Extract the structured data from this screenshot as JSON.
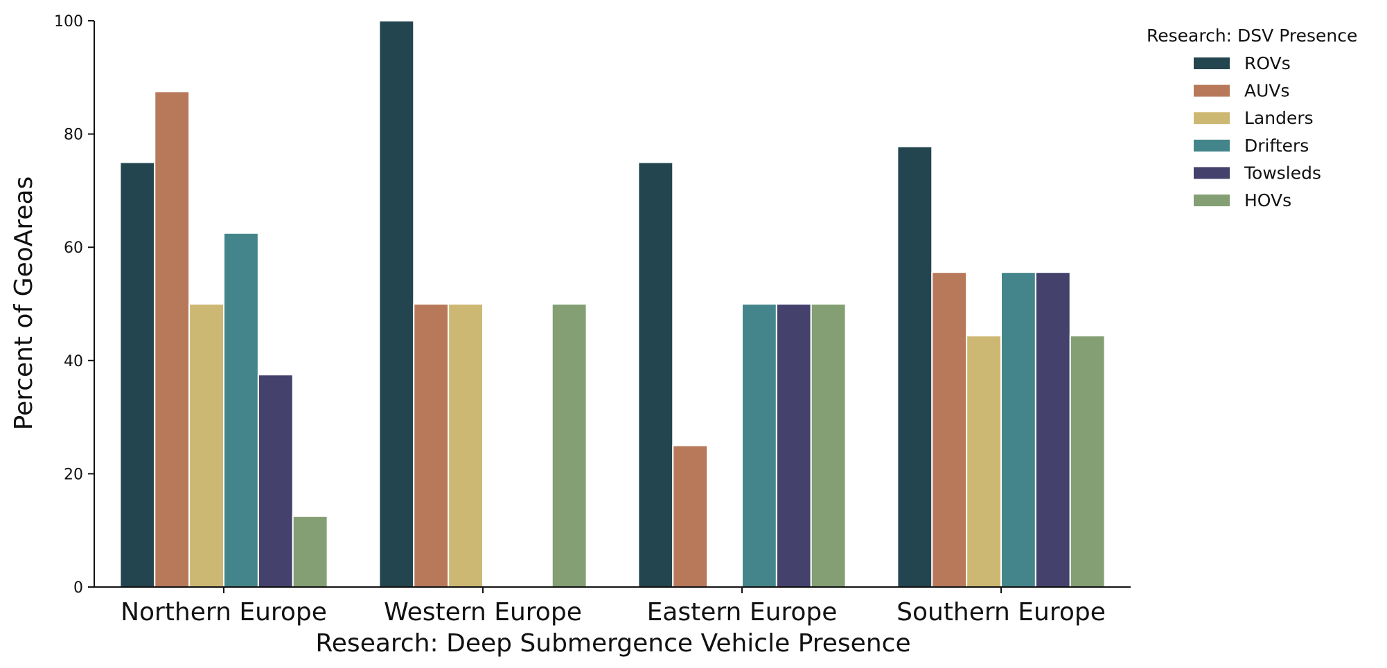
{
  "chart_data": {
    "type": "bar",
    "title": "",
    "xlabel": "Research: Deep Submergence Vehicle Presence",
    "ylabel": "Percent of GeoAreas",
    "ylim": [
      0,
      100
    ],
    "yticks": [
      "0",
      "20",
      "40",
      "60",
      "80",
      "100"
    ],
    "grid": false,
    "legend": {
      "title": "Research: DSV Presence",
      "placement": "outside-top-right"
    },
    "categories": [
      "Northern Europe",
      "Western Europe",
      "Eastern Europe",
      "Southern Europe"
    ],
    "series": [
      {
        "name": "ROVs",
        "color": "#23454f",
        "values": [
          75,
          100,
          75,
          77.8
        ]
      },
      {
        "name": "AUVs",
        "color": "#b8795b",
        "values": [
          87.5,
          50,
          25,
          55.6
        ]
      },
      {
        "name": "Landers",
        "color": "#cdb873",
        "values": [
          50,
          50,
          0,
          44.4
        ]
      },
      {
        "name": "Drifters",
        "color": "#43858a",
        "values": [
          62.5,
          0,
          50,
          55.6
        ]
      },
      {
        "name": "Towsleds",
        "color": "#44416d",
        "values": [
          37.5,
          0,
          50,
          55.6
        ]
      },
      {
        "name": "HOVs",
        "color": "#839f73",
        "values": [
          12.5,
          50,
          50,
          44.4
        ]
      }
    ]
  }
}
